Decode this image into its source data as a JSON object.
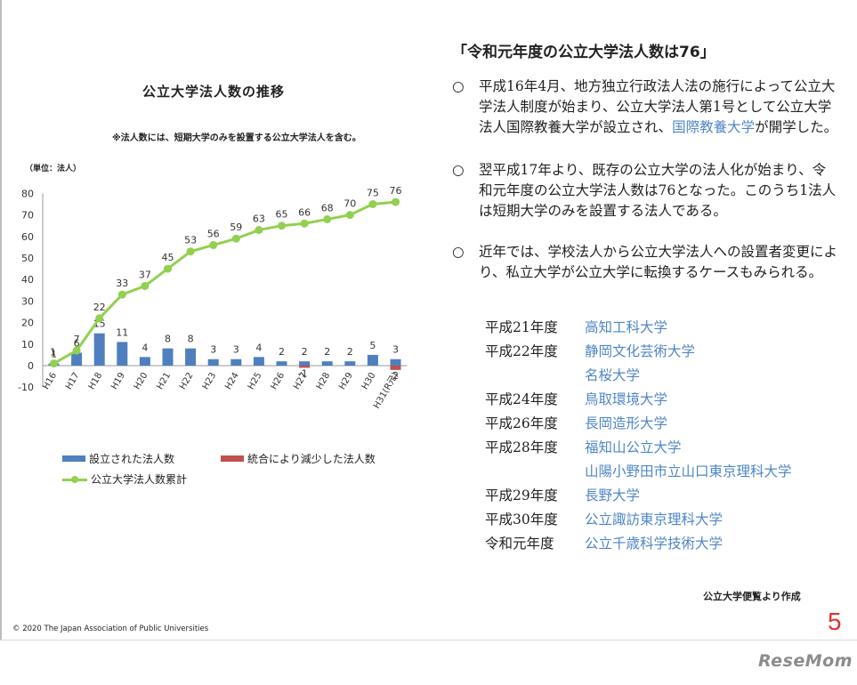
{
  "chart": {
    "title": "公立大学法人数の推移",
    "note": "※法人数には、短期大学のみを設置する公立大学法人を含む。",
    "unit": "（単位：法人）",
    "legend": {
      "established": "設立された法人数",
      "reduced": "統合により減少した法人数",
      "cumulative": "公立大学法人数累計"
    }
  },
  "chart_data": {
    "type": "bar",
    "title": "公立大学法人数の推移",
    "ylabel": "（単位：法人）",
    "ylim": [
      -10,
      80
    ],
    "yticks": [
      80,
      70,
      60,
      50,
      40,
      30,
      20,
      10,
      0,
      -10
    ],
    "grid": false,
    "categories": [
      "H16",
      "H17",
      "H18",
      "H19",
      "H20",
      "H21",
      "H22",
      "H23",
      "H24",
      "H25",
      "H26",
      "H27",
      "H28",
      "H29",
      "H30",
      "H31(R元)"
    ],
    "series": [
      {
        "name": "設立された法人数",
        "kind": "bar",
        "values": [
          1,
          6,
          15,
          11,
          4,
          8,
          8,
          3,
          3,
          4,
          2,
          2,
          2,
          2,
          5,
          3
        ]
      },
      {
        "name": "統合により減少した法人数",
        "kind": "bar",
        "values": [
          0,
          0,
          0,
          0,
          0,
          0,
          0,
          0,
          0,
          0,
          0,
          -1,
          0,
          0,
          0,
          -2
        ]
      },
      {
        "name": "公立大学法人数累計",
        "kind": "line",
        "values": [
          1,
          7,
          22,
          33,
          37,
          45,
          53,
          56,
          59,
          63,
          65,
          66,
          68,
          70,
          75,
          76
        ]
      }
    ],
    "colors": {
      "established": "#4f7fbe",
      "reduced": "#c0504d",
      "cumulative": "#92d050"
    }
  },
  "right": {
    "heading": "「令和元年度の公立大学法人数は76」",
    "bullet_mark": "○",
    "bullet1": "平成16年4月、地方独立行政法人法の施行によって公立大学法人制度が始まり、公立大学法人第1号として公立大学法人国際教養大学が設立され、",
    "bullet1_link": "国際教養大学",
    "bullet1_tail": "が開学した。",
    "bullet2": "翌平成17年より、既存の公立大学の法人化が始まり、令和元年度の公立大学法人数は76となった。このうち1法人は短期大学のみを設置する法人である。",
    "bullet3": "近年では、学校法人から公立大学法人への設置者変更により、私立大学が公立大学に転換するケースもみられる。"
  },
  "universities": [
    {
      "year": "平成21年度",
      "name": "高知工科大学"
    },
    {
      "year": "平成22年度",
      "name": "静岡文化芸術大学"
    },
    {
      "year": "",
      "name": "名桜大学"
    },
    {
      "year": "平成24年度",
      "name": "鳥取環境大学"
    },
    {
      "year": "平成26年度",
      "name": "長岡造形大学"
    },
    {
      "year": "平成28年度",
      "name": "福知山公立大学"
    },
    {
      "year": "",
      "name": "山陽小野田市立山口東京理科大学"
    },
    {
      "year": "平成29年度",
      "name": "長野大学"
    },
    {
      "year": "平成30年度",
      "name": "公立諏訪東京理科大学"
    },
    {
      "year": "令和元年度",
      "name": "公立千歳科学技術大学"
    }
  ],
  "footer": {
    "source": "公立大学便覧より作成",
    "copyright": "©  2020  The Japan Association of Public Universities",
    "page": "5",
    "watermark": "ReseMom"
  }
}
